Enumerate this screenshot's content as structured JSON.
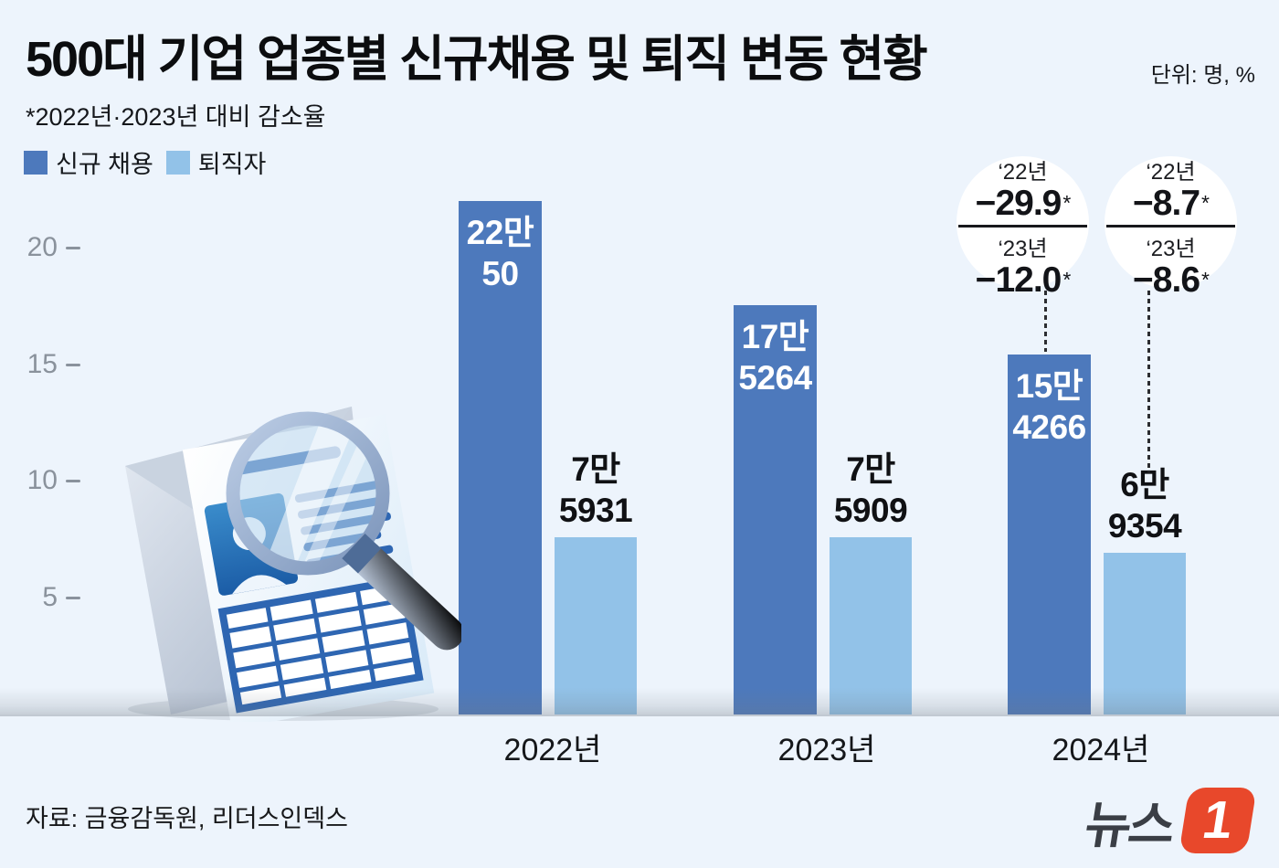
{
  "title": "500대 기업 업종별 신규채용 및 퇴직 변동 현황",
  "unit_label": "단위: 명, %",
  "footnote": "*2022년·2023년 대비 감소율",
  "legend": {
    "new_hires": "신규 채용",
    "retirees": "퇴직자"
  },
  "colors": {
    "background": "#edf4fc",
    "new_hires_bar": "#4d79bc",
    "retirees_bar": "#92c2e8",
    "logo_accent": "#e8482b"
  },
  "chart_data": {
    "type": "bar",
    "title": "500대 기업 업종별 신규채용 및 퇴직 변동 현황",
    "unit": "명",
    "categories": [
      "2022년",
      "2023년",
      "2024년"
    ],
    "series": [
      {
        "name": "신규 채용",
        "color": "#4d79bc",
        "values": [
          220050,
          175264,
          154266
        ],
        "labels": [
          [
            "22만",
            "50"
          ],
          [
            "17만",
            "5264"
          ],
          [
            "15만",
            "4266"
          ]
        ]
      },
      {
        "name": "퇴직자",
        "color": "#92c2e8",
        "values": [
          75931,
          75909,
          69354
        ],
        "labels": [
          [
            "7만",
            "5931"
          ],
          [
            "7만",
            "5909"
          ],
          [
            "6만",
            "9354"
          ]
        ]
      }
    ],
    "y_axis": {
      "ticks": [
        20,
        15,
        10,
        5
      ],
      "tick_unit": 10000,
      "ylim_persons": [
        0,
        225000
      ],
      "grid": false
    },
    "legend_position": "top-left",
    "annotations": [
      {
        "target": "2024년 신규 채용",
        "rows": [
          {
            "year": "‘22년",
            "value": "−29.9",
            "asterisk": "*"
          },
          {
            "year": "‘23년",
            "value": "−12.0",
            "asterisk": "*"
          }
        ]
      },
      {
        "target": "2024년 퇴직자",
        "rows": [
          {
            "year": "‘22년",
            "value": "−8.7",
            "asterisk": "*"
          },
          {
            "year": "‘23년",
            "value": "−8.6",
            "asterisk": "*"
          }
        ]
      }
    ]
  },
  "source": "자료: 금융감독원, 리더스인덱스",
  "logo": {
    "name_text": "뉴스",
    "one": "1"
  }
}
